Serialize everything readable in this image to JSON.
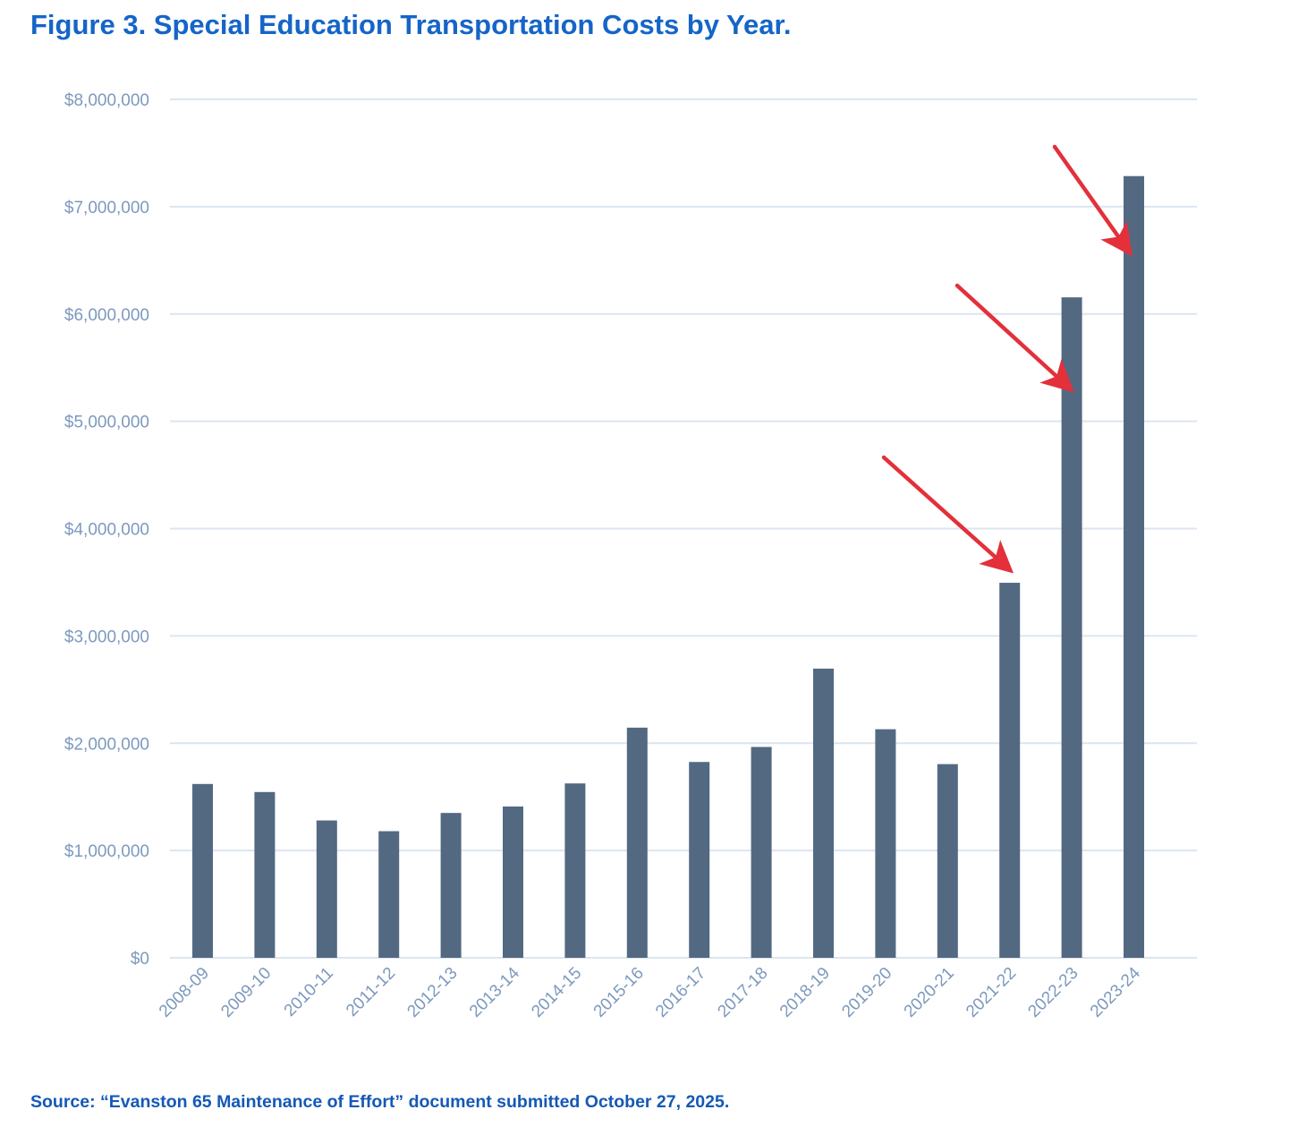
{
  "figure": {
    "title": "Figure 3. Special Education Transportation Costs by Year.",
    "source": "Source: “Evanston 65 Maintenance of Effort” document submitted October 27, 2025."
  },
  "colors": {
    "title": "#1565c8",
    "source": "#1459b6",
    "bar": "#536982",
    "grid": "#dce5f0",
    "tick_label": "#7d99be",
    "arrow": "#e3303b"
  },
  "chart_data": {
    "type": "bar",
    "title": "Figure 3. Special Education Transportation Costs by Year.",
    "xlabel": "",
    "ylabel": "",
    "categories": [
      "2008-09",
      "2009-10",
      "2010-11",
      "2011-12",
      "2012-13",
      "2013-14",
      "2014-15",
      "2015-16",
      "2016-17",
      "2017-18",
      "2018-19",
      "2019-20",
      "2020-21",
      "2021-22",
      "2022-23",
      "2023-24"
    ],
    "values": [
      1620000,
      1545000,
      1280000,
      1180000,
      1350000,
      1410000,
      1625000,
      2145000,
      1825000,
      1965000,
      2695000,
      2130000,
      1805000,
      3495000,
      6155000,
      7285000
    ],
    "ylim": [
      0,
      8000000
    ],
    "yticks": [
      0,
      1000000,
      2000000,
      3000000,
      4000000,
      5000000,
      6000000,
      7000000,
      8000000
    ],
    "ytick_labels": [
      "$0",
      "$1,000,000",
      "$2,000,000",
      "$3,000,000",
      "$4,000,000",
      "$5,000,000",
      "$6,000,000",
      "$7,000,000",
      "$8,000,000"
    ],
    "grid": true,
    "legend": "none",
    "annotations": [
      {
        "type": "arrow",
        "points_to": "2021-22",
        "color": "#e3303b"
      },
      {
        "type": "arrow",
        "points_to": "2022-23",
        "color": "#e3303b"
      },
      {
        "type": "arrow",
        "points_to": "2023-24",
        "color": "#e3303b"
      }
    ]
  }
}
